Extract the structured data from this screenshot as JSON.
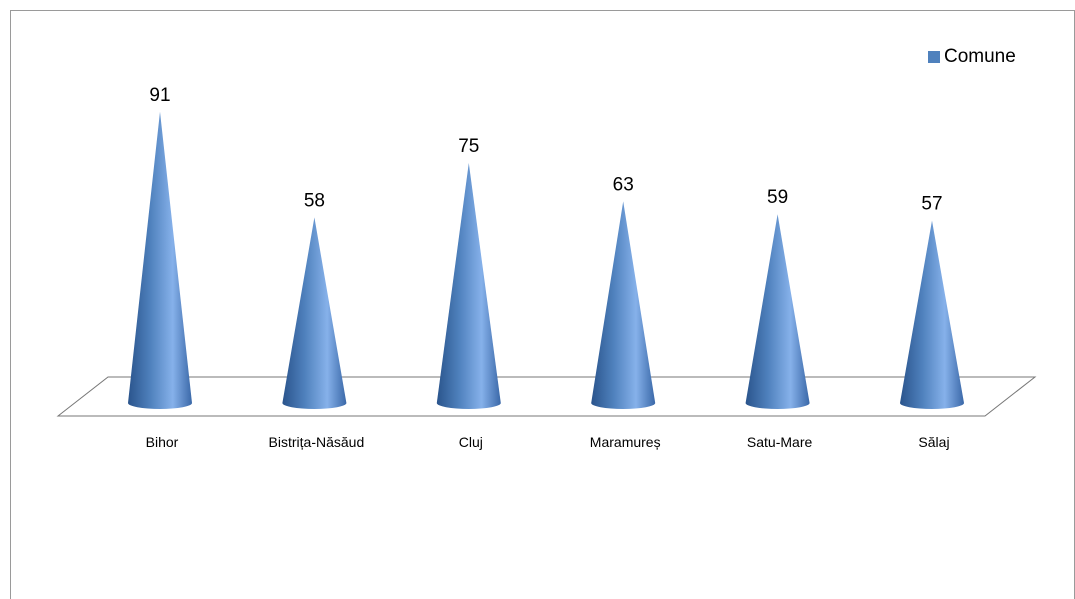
{
  "chart_data": {
    "type": "bar",
    "shape": "cone",
    "categories": [
      "Bihor",
      "Bistrița-Năsăud",
      "Cluj",
      "Maramureș",
      "Satu-Mare",
      "Sălaj"
    ],
    "series": [
      {
        "name": "Comune",
        "values": [
          91,
          58,
          75,
          63,
          59,
          57
        ]
      }
    ],
    "legend_position": "top-right",
    "colors": {
      "series": "#4F81BD",
      "series_dark": "#2A548C",
      "series_light": "#86B1EA"
    },
    "grid": false
  }
}
